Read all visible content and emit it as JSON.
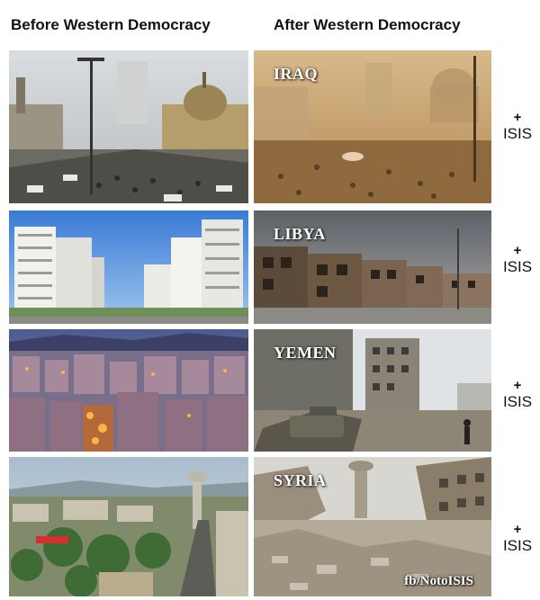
{
  "headers": {
    "before": "Before Western Democracy",
    "after": "After Western Democracy"
  },
  "rows": [
    {
      "country": "IRAQ",
      "plus": "+",
      "isis": "ISIS"
    },
    {
      "country": "LIBYA",
      "plus": "+",
      "isis": "ISIS"
    },
    {
      "country": "YEMEN",
      "plus": "+",
      "isis": "ISIS"
    },
    {
      "country": "SYRIA",
      "plus": "+",
      "isis": "ISIS"
    }
  ],
  "credit": "fb/NotoISIS"
}
